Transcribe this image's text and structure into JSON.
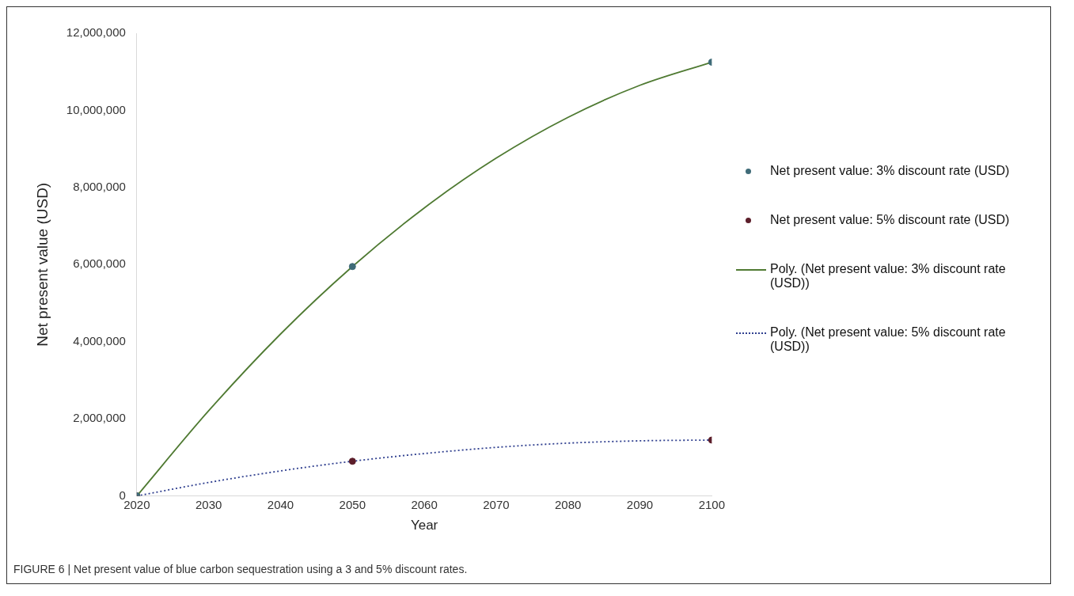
{
  "chart_data": {
    "type": "scatter",
    "xlabel": "Year",
    "ylabel": "Net present value (USD)",
    "xlim": [
      2020,
      2100
    ],
    "xticks": [
      2020,
      2030,
      2040,
      2050,
      2060,
      2070,
      2080,
      2090,
      2100
    ],
    "ylim": [
      0,
      12000000
    ],
    "yticks": [
      {
        "value": 0,
        "label": "0"
      },
      {
        "value": 2000000,
        "label": "2,000,000"
      },
      {
        "value": 4000000,
        "label": "4,000,000"
      },
      {
        "value": 6000000,
        "label": "6,000,000"
      },
      {
        "value": 8000000,
        "label": "8,000,000"
      },
      {
        "value": 10000000,
        "label": "10,000,000"
      },
      {
        "value": 12000000,
        "label": "12,000,000"
      }
    ],
    "grid": false,
    "legend": "right",
    "marker": "circle",
    "series": [
      {
        "name": "Net present value: 3% discount rate (USD)",
        "color": "#3f6b78",
        "x": [
          2020,
          2050,
          2100
        ],
        "values": [
          0,
          5950000,
          11250000
        ]
      },
      {
        "name": "Net present value: 5% discount rate (USD)",
        "color": "#5c1e2a",
        "x": [
          2020,
          2050,
          2100
        ],
        "values": [
          0,
          900000,
          1450000
        ]
      },
      {
        "name": "Poly. (Net present value: 3% discount rate (USD))",
        "type": "line",
        "color": "#4f7a32",
        "marker": "none",
        "line_style": "solid",
        "x": [
          2020,
          2030,
          2040,
          2050,
          2060,
          2070,
          2080,
          2090,
          2100
        ],
        "values": [
          0,
          2210000,
          4200000,
          5950000,
          7470000,
          8760000,
          9820000,
          10650000,
          11250000
        ]
      },
      {
        "name": "Poly. (Net present value: 5% discount rate (USD))",
        "type": "line",
        "color": "#2f3f8f",
        "marker": "none",
        "line_style": "dotted",
        "x": [
          2020,
          2030,
          2040,
          2050,
          2060,
          2070,
          2080,
          2090,
          2100
        ],
        "values": [
          0,
          350000,
          650000,
          900000,
          1100000,
          1260000,
          1370000,
          1430000,
          1450000
        ]
      }
    ],
    "annotations": [
      "FIGURE 6 | Net present value of blue carbon sequestration using a 3 and 5% discount rates."
    ]
  }
}
